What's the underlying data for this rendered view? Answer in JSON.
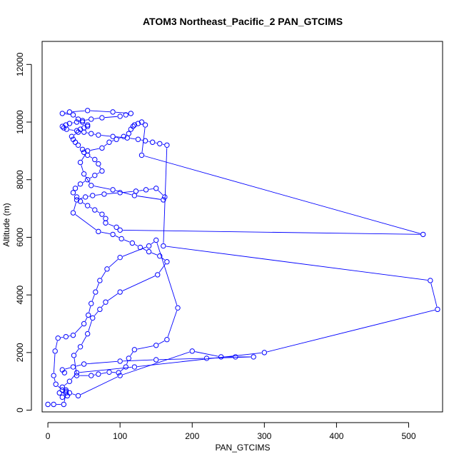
{
  "chart_data": {
    "type": "line",
    "title": "ATOM3 Northeast_Pacific_2 PAN_GTCIMS",
    "xlabel": "PAN_GTCIMS",
    "ylabel": "Altitude (m)",
    "xlim": [
      -8,
      547
    ],
    "ylim": [
      -60,
      12800
    ],
    "x_ticks": [
      0,
      100,
      200,
      300,
      400,
      500
    ],
    "y_ticks": [
      0,
      2000,
      4000,
      6000,
      8000,
      10000,
      12000
    ],
    "grid": false,
    "legend": "none",
    "color": "#0000ff",
    "marker": "open-circle",
    "series": [
      {
        "x": [
          0,
          8,
          22,
          25,
          16,
          20,
          27,
          25,
          20,
          11,
          8,
          10,
          14,
          25,
          35,
          50,
          56,
          60,
          66,
          72,
          82,
          100,
          140,
          150,
          180,
          165,
          150,
          120,
          112,
          108,
          98,
          85,
          70,
          60,
          40,
          36,
          45,
          55,
          62,
          72,
          80,
          100,
          152,
          165,
          155,
          140,
          128,
          117,
          102,
          90,
          70,
          35,
          40,
          52,
          62,
          78,
          100,
          122,
          136,
          150,
          162,
          160,
          120,
          90,
          60,
          50,
          45,
          55,
          75,
          85,
          95,
          105,
          112,
          115,
          118,
          120,
          125,
          130,
          135,
          130,
          520,
          100,
          95,
          80,
          80,
          75,
          65,
          55,
          45,
          40,
          35,
          38,
          45,
          55,
          65,
          75,
          70,
          65,
          55,
          50,
          48,
          42,
          38,
          35,
          33,
          42,
          45,
          50,
          55,
          55,
          48,
          42,
          35,
          20,
          30,
          55,
          90,
          115,
          108,
          100,
          75,
          60,
          48,
          40,
          30,
          25,
          20,
          22,
          26,
          40,
          50,
          60,
          70,
          90,
          110,
          125,
          135,
          145,
          155,
          165,
          160,
          530,
          540,
          300,
          120,
          40,
          30,
          20,
          25,
          30,
          42,
          100,
          200,
          240,
          260,
          285,
          220,
          150,
          100,
          50,
          35,
          20,
          23
        ],
        "y": [
          200,
          200,
          200,
          600,
          600,
          450,
          500,
          650,
          700,
          900,
          1200,
          2050,
          2500,
          2550,
          2600,
          3000,
          3300,
          3700,
          4100,
          4500,
          4900,
          5300,
          5700,
          5900,
          3550,
          2450,
          2250,
          2100,
          1800,
          1500,
          1300,
          1320,
          1250,
          1200,
          1200,
          1900,
          2200,
          2650,
          3200,
          3500,
          3750,
          4100,
          4700,
          5150,
          5350,
          5500,
          5650,
          5800,
          5950,
          6100,
          6200,
          6850,
          7300,
          7400,
          7450,
          7500,
          7550,
          7600,
          7650,
          7700,
          7400,
          7300,
          7450,
          7650,
          7800,
          8200,
          8600,
          9000,
          9100,
          9300,
          9400,
          9500,
          9600,
          9750,
          9850,
          9900,
          9950,
          10000,
          9900,
          8850,
          6100,
          6250,
          6350,
          6500,
          6650,
          6800,
          6950,
          7100,
          7250,
          7400,
          7550,
          7700,
          7850,
          8000,
          8150,
          8300,
          8550,
          8700,
          8850,
          8950,
          9050,
          9200,
          9300,
          9400,
          9500,
          9650,
          9750,
          9800,
          9850,
          9900,
          10000,
          10100,
          10250,
          10300,
          10350,
          10400,
          10350,
          10300,
          10250,
          10200,
          10150,
          10100,
          10050,
          10000,
          9950,
          9900,
          9850,
          9800,
          9750,
          9700,
          9650,
          9600,
          9550,
          9500,
          9450,
          9400,
          9350,
          9300,
          9250,
          9200,
          5700,
          4500,
          3500,
          2000,
          1500,
          1300,
          1000,
          800,
          700,
          600,
          500,
          1200,
          2050,
          1850,
          1850,
          1850,
          1800,
          1750,
          1700,
          1600,
          1500,
          1400,
          1300
        ],
        "note": ""
      }
    ]
  }
}
